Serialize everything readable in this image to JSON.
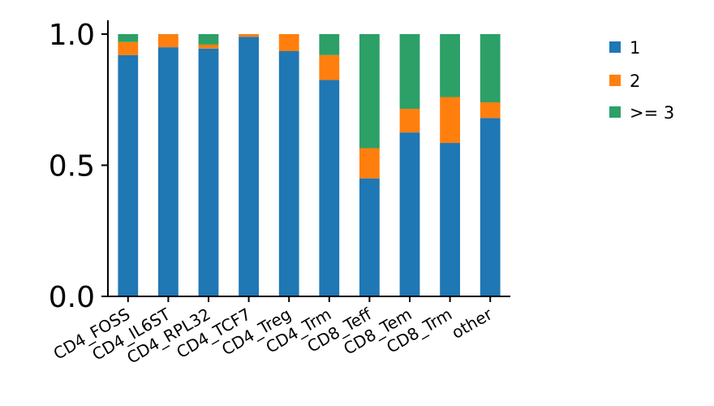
{
  "chart_data": {
    "type": "bar",
    "stacked": true,
    "categories": [
      "CD4_FOSS",
      "CD4_IL6ST",
      "CD4_RPL32",
      "CD4_TCF7",
      "CD4_Treg",
      "CD4_Trm",
      "CD8_Teff",
      "CD8_Tem",
      "CD8_Trm",
      "other"
    ],
    "series": [
      {
        "name": "1",
        "color": "#1f77b4",
        "values": [
          0.92,
          0.95,
          0.945,
          0.99,
          0.935,
          0.825,
          0.45,
          0.625,
          0.585,
          0.68
        ]
      },
      {
        "name": "2",
        "color": "#ff7f0e",
        "values": [
          0.05,
          0.05,
          0.015,
          0.01,
          0.065,
          0.095,
          0.115,
          0.09,
          0.175,
          0.06
        ]
      },
      {
        "name": ">= 3",
        "color": "#2ca067",
        "values": [
          0.03,
          0.0,
          0.04,
          0.0,
          0.0,
          0.08,
          0.435,
          0.285,
          0.24,
          0.26
        ]
      }
    ],
    "yticks": [
      "0.0",
      "0.5",
      "1.0"
    ],
    "ylim": [
      0,
      1.05
    ],
    "legend_position": "right"
  }
}
